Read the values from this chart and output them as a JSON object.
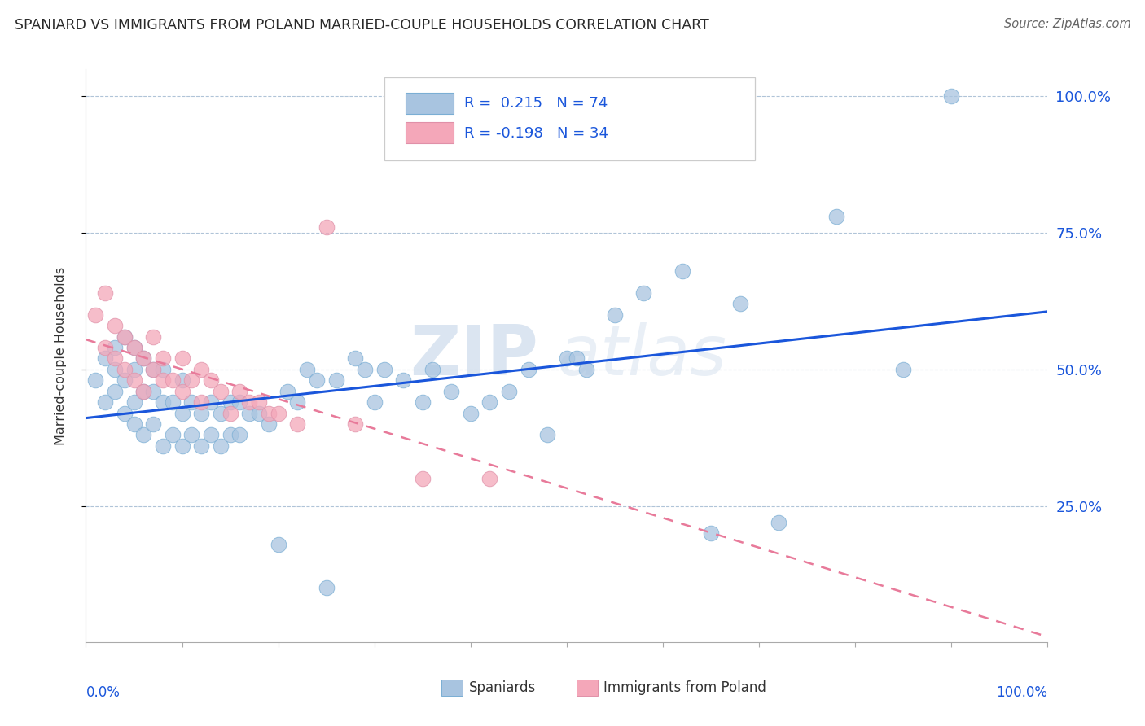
{
  "title": "SPANIARD VS IMMIGRANTS FROM POLAND MARRIED-COUPLE HOUSEHOLDS CORRELATION CHART",
  "source": "Source: ZipAtlas.com",
  "ylabel": "Married-couple Households",
  "ytick_labels": [
    "25.0%",
    "50.0%",
    "75.0%",
    "100.0%"
  ],
  "ytick_values": [
    0.25,
    0.5,
    0.75,
    1.0
  ],
  "legend_label1": "Spaniards",
  "legend_label2": "Immigrants from Poland",
  "R1": 0.215,
  "N1": 74,
  "R2": -0.198,
  "N2": 34,
  "color_blue": "#a8c4e0",
  "color_pink": "#f4a7b9",
  "color_blue_edge": "#7aaed4",
  "color_pink_edge": "#e090a8",
  "color_blue_line": "#1a56db",
  "color_pink_line": "#e87a9a",
  "color_text_blue": "#1a56db",
  "color_text_dark": "#2a2a2a",
  "color_source": "#666666",
  "watermark_color": "#c8d8ea",
  "grid_color": "#b0c4d8",
  "spine_color": "#aaaaaa",
  "background": "#ffffff",
  "spaniards_x": [
    0.01,
    0.02,
    0.02,
    0.03,
    0.03,
    0.03,
    0.04,
    0.04,
    0.04,
    0.05,
    0.05,
    0.05,
    0.05,
    0.06,
    0.06,
    0.06,
    0.07,
    0.07,
    0.07,
    0.08,
    0.08,
    0.08,
    0.09,
    0.09,
    0.1,
    0.1,
    0.1,
    0.11,
    0.11,
    0.12,
    0.12,
    0.13,
    0.13,
    0.14,
    0.14,
    0.15,
    0.15,
    0.16,
    0.16,
    0.17,
    0.18,
    0.19,
    0.2,
    0.21,
    0.22,
    0.23,
    0.24,
    0.25,
    0.26,
    0.28,
    0.29,
    0.3,
    0.31,
    0.33,
    0.35,
    0.36,
    0.38,
    0.4,
    0.42,
    0.44,
    0.46,
    0.48,
    0.5,
    0.51,
    0.52,
    0.55,
    0.58,
    0.62,
    0.65,
    0.68,
    0.72,
    0.78,
    0.85,
    0.9
  ],
  "spaniards_y": [
    0.48,
    0.44,
    0.52,
    0.46,
    0.5,
    0.54,
    0.42,
    0.48,
    0.56,
    0.4,
    0.44,
    0.5,
    0.54,
    0.38,
    0.46,
    0.52,
    0.4,
    0.46,
    0.5,
    0.36,
    0.44,
    0.5,
    0.38,
    0.44,
    0.36,
    0.42,
    0.48,
    0.38,
    0.44,
    0.36,
    0.42,
    0.38,
    0.44,
    0.36,
    0.42,
    0.38,
    0.44,
    0.38,
    0.44,
    0.42,
    0.42,
    0.4,
    0.18,
    0.46,
    0.44,
    0.5,
    0.48,
    0.1,
    0.48,
    0.52,
    0.5,
    0.44,
    0.5,
    0.48,
    0.44,
    0.5,
    0.46,
    0.42,
    0.44,
    0.46,
    0.5,
    0.38,
    0.52,
    0.52,
    0.5,
    0.6,
    0.64,
    0.68,
    0.2,
    0.62,
    0.22,
    0.78,
    0.5,
    1.0
  ],
  "poland_x": [
    0.01,
    0.02,
    0.02,
    0.03,
    0.03,
    0.04,
    0.04,
    0.05,
    0.05,
    0.06,
    0.06,
    0.07,
    0.07,
    0.08,
    0.08,
    0.09,
    0.1,
    0.1,
    0.11,
    0.12,
    0.12,
    0.13,
    0.14,
    0.15,
    0.16,
    0.17,
    0.18,
    0.19,
    0.2,
    0.22,
    0.25,
    0.28,
    0.35,
    0.42
  ],
  "poland_y": [
    0.6,
    0.64,
    0.54,
    0.52,
    0.58,
    0.5,
    0.56,
    0.48,
    0.54,
    0.46,
    0.52,
    0.5,
    0.56,
    0.48,
    0.52,
    0.48,
    0.46,
    0.52,
    0.48,
    0.44,
    0.5,
    0.48,
    0.46,
    0.42,
    0.46,
    0.44,
    0.44,
    0.42,
    0.42,
    0.4,
    0.76,
    0.4,
    0.3,
    0.3
  ]
}
